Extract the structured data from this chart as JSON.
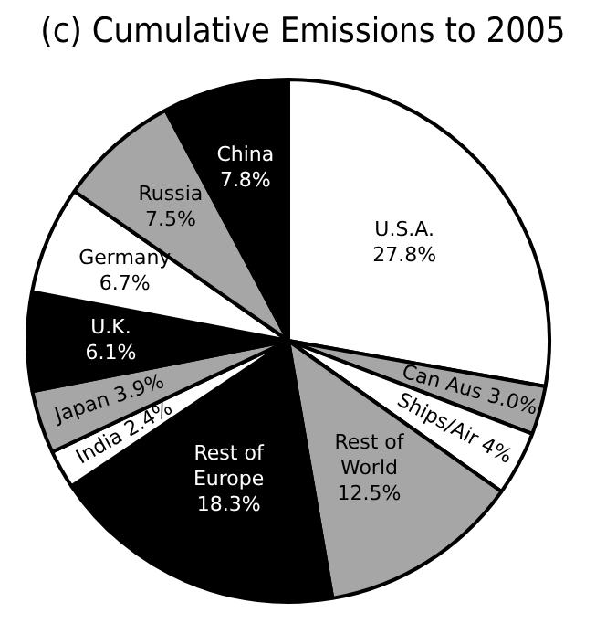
{
  "chart_data": {
    "type": "pie",
    "title": "(c) Cumulative Emissions to 2005",
    "categories": [
      "U.S.A.",
      "Can Aus",
      "Ships/Air",
      "Rest of World",
      "Rest of Europe",
      "India",
      "Japan",
      "U.K.",
      "Germany",
      "Russia",
      "China"
    ],
    "values": [
      27.8,
      3.0,
      4,
      12.5,
      18.3,
      2.4,
      3.9,
      6.1,
      6.7,
      7.5,
      7.8
    ],
    "value_labels": [
      "27.8%",
      "3.0%",
      "4%",
      "12.5%",
      "18.3%",
      "2.4%",
      "3.9%",
      "6.1%",
      "6.7%",
      "7.5%",
      "7.8%"
    ],
    "colors": [
      "#ffffff",
      "#a6a6a6",
      "#ffffff",
      "#a6a6a6",
      "#000000",
      "#ffffff",
      "#a6a6a6",
      "#000000",
      "#ffffff",
      "#a6a6a6",
      "#000000"
    ],
    "legend": false
  }
}
